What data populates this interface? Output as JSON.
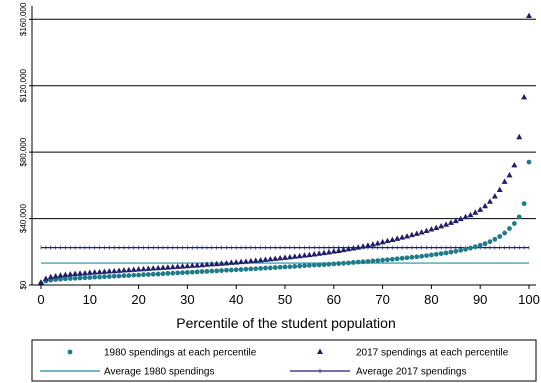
{
  "chart_data": {
    "type": "scatter",
    "title": "",
    "xlabel": "Percentile of the student population",
    "ylabel": "",
    "xlim": [
      0,
      100
    ],
    "ylim": [
      0,
      168000
    ],
    "x_ticks": [
      0,
      10,
      20,
      30,
      40,
      50,
      60,
      70,
      80,
      90,
      100
    ],
    "y_ticks": [
      {
        "value": 0,
        "label": "$0"
      },
      {
        "value": 40000,
        "label": "$40,000"
      },
      {
        "value": 80000,
        "label": "$80,000"
      },
      {
        "value": 120000,
        "label": "$120,000"
      },
      {
        "value": 160000,
        "label": "$160,000"
      }
    ],
    "grid": "horizontal lines at y ticks",
    "legend_position": "bottom",
    "series": [
      {
        "name": "1980 spendings at each percentile",
        "marker": "circle",
        "color": "#1e7b8a",
        "x": [
          0,
          1,
          2,
          3,
          4,
          5,
          6,
          7,
          8,
          9,
          10,
          11,
          12,
          13,
          14,
          15,
          16,
          17,
          18,
          19,
          20,
          21,
          22,
          23,
          24,
          25,
          26,
          27,
          28,
          29,
          30,
          31,
          32,
          33,
          34,
          35,
          36,
          37,
          38,
          39,
          40,
          41,
          42,
          43,
          44,
          45,
          46,
          47,
          48,
          49,
          50,
          51,
          52,
          53,
          54,
          55,
          56,
          57,
          58,
          59,
          60,
          61,
          62,
          63,
          64,
          65,
          66,
          67,
          68,
          69,
          70,
          71,
          72,
          73,
          74,
          75,
          76,
          77,
          78,
          79,
          80,
          81,
          82,
          83,
          84,
          85,
          86,
          87,
          88,
          89,
          90,
          91,
          92,
          93,
          94,
          95,
          96,
          97,
          98,
          99,
          100
        ],
        "values": [
          1000,
          2400,
          2900,
          3300,
          3500,
          3700,
          3900,
          4000,
          4200,
          4300,
          4500,
          4700,
          4800,
          5000,
          5100,
          5300,
          5400,
          5600,
          5700,
          5900,
          6000,
          6200,
          6300,
          6500,
          6600,
          6800,
          7000,
          7100,
          7300,
          7400,
          7600,
          7700,
          7900,
          8100,
          8200,
          8400,
          8500,
          8700,
          8900,
          9000,
          9200,
          9300,
          9500,
          9700,
          9800,
          10000,
          10200,
          10300,
          10500,
          10700,
          10900,
          11000,
          11200,
          11400,
          11600,
          11800,
          12000,
          12100,
          12300,
          12500,
          12700,
          12900,
          13100,
          13300,
          13600,
          13800,
          14000,
          14200,
          14500,
          14700,
          15000,
          15200,
          15500,
          15800,
          16100,
          16400,
          16700,
          17000,
          17300,
          17700,
          18100,
          18500,
          18900,
          19300,
          19800,
          20300,
          20900,
          21500,
          22200,
          23000,
          23900,
          24900,
          26100,
          27500,
          29200,
          31300,
          34000,
          37000,
          41000,
          49000,
          74000
        ]
      },
      {
        "name": "2017 spendings at each percentile",
        "marker": "triangle",
        "color": "#1f1f6e",
        "x": [
          0,
          1,
          2,
          3,
          4,
          5,
          6,
          7,
          8,
          9,
          10,
          11,
          12,
          13,
          14,
          15,
          16,
          17,
          18,
          19,
          20,
          21,
          22,
          23,
          24,
          25,
          26,
          27,
          28,
          29,
          30,
          31,
          32,
          33,
          34,
          35,
          36,
          37,
          38,
          39,
          40,
          41,
          42,
          43,
          44,
          45,
          46,
          47,
          48,
          49,
          50,
          51,
          52,
          53,
          54,
          55,
          56,
          57,
          58,
          59,
          60,
          61,
          62,
          63,
          64,
          65,
          66,
          67,
          68,
          69,
          70,
          71,
          72,
          73,
          74,
          75,
          76,
          77,
          78,
          79,
          80,
          81,
          82,
          83,
          84,
          85,
          86,
          87,
          88,
          89,
          90,
          91,
          92,
          93,
          94,
          95,
          96,
          97,
          98,
          99,
          100
        ],
        "values": [
          1500,
          3700,
          4700,
          5200,
          5600,
          6000,
          6300,
          6600,
          6800,
          7000,
          7300,
          7500,
          7700,
          7900,
          8100,
          8300,
          8500,
          8700,
          8900,
          9100,
          9300,
          9500,
          9700,
          9900,
          10100,
          10300,
          10500,
          10700,
          10900,
          11100,
          11300,
          11500,
          11700,
          11900,
          12200,
          12400,
          12600,
          12800,
          13000,
          13300,
          13500,
          13800,
          14000,
          14300,
          14500,
          14800,
          15100,
          15400,
          15700,
          16000,
          16300,
          16600,
          17000,
          17300,
          17700,
          18000,
          18400,
          18800,
          19200,
          19600,
          20100,
          20500,
          21000,
          21500,
          22000,
          22500,
          23100,
          23700,
          24300,
          25000,
          25700,
          26400,
          27100,
          27800,
          28500,
          29200,
          30000,
          30800,
          31600,
          32500,
          33400,
          34300,
          35300,
          36300,
          37400,
          38500,
          39700,
          40900,
          42000,
          43500,
          45200,
          47400,
          50100,
          53300,
          57200,
          62100,
          66000,
          72000,
          89000,
          113000,
          162000
        ]
      },
      {
        "name": "Average 1980 spendings",
        "type": "line",
        "color": "#1e8fa3",
        "x": [
          0,
          100
        ],
        "values": [
          13200,
          13200
        ]
      },
      {
        "name": "Average 2017 spendings",
        "type": "line",
        "color": "#1f1f7a",
        "x": [
          0,
          100
        ],
        "values": [
          22500,
          22500
        ]
      }
    ]
  }
}
